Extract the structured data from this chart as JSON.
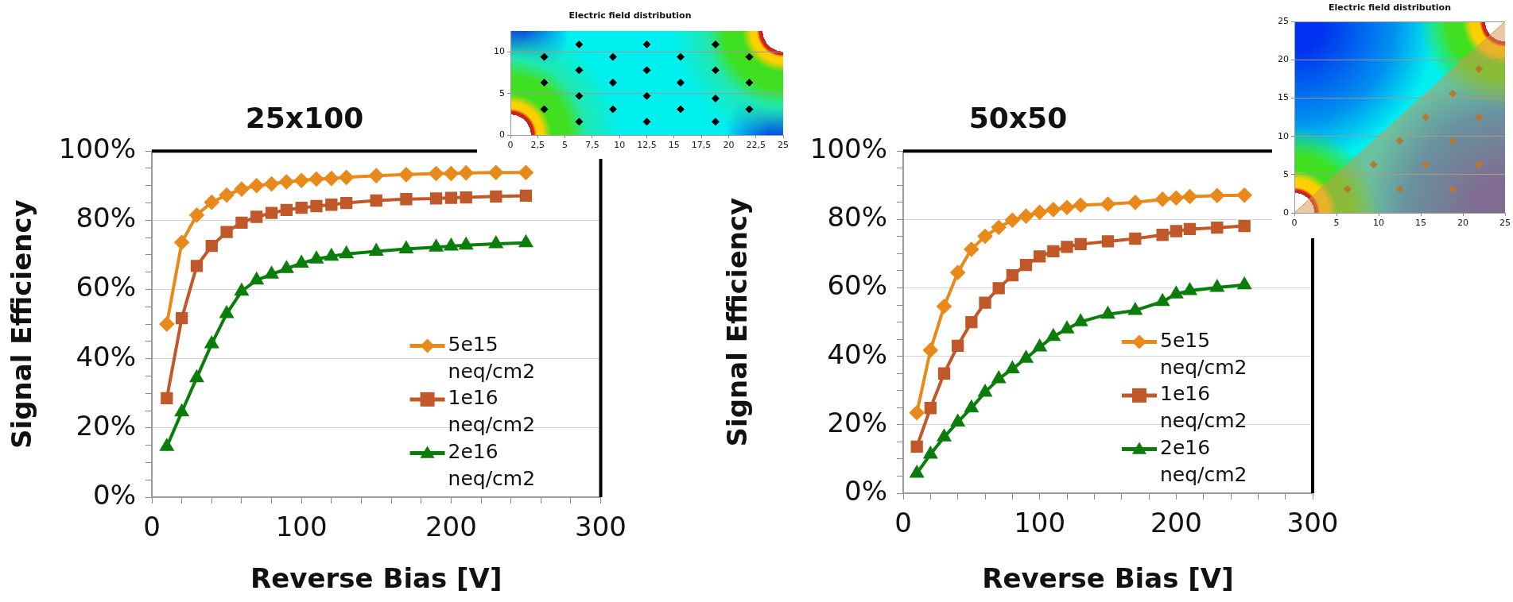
{
  "chart_data": [
    {
      "type": "line",
      "title": "25x100",
      "xlabel": "Reverse Bias [V]",
      "ylabel": "Signal Efficiency",
      "x": [
        10,
        20,
        30,
        40,
        50,
        60,
        70,
        80,
        90,
        100,
        110,
        120,
        130,
        150,
        170,
        190,
        200,
        210,
        230,
        250
      ],
      "series": [
        {
          "name": "5e15 neq/cm2",
          "color": "#e8891a",
          "marker": "diamond",
          "values": [
            50,
            73.6,
            81.5,
            85.2,
            87.3,
            89,
            90,
            90.5,
            91.1,
            91.5,
            91.9,
            92.1,
            92.4,
            92.9,
            93.2,
            93.5,
            93.5,
            93.7,
            93.8,
            93.8
          ]
        },
        {
          "name": "1e16 neq/cm2",
          "color": "#c0582a",
          "marker": "square",
          "values": [
            28.6,
            51.7,
            66.8,
            72.6,
            76.6,
            79.3,
            81,
            82.1,
            83,
            83.6,
            84.1,
            84.5,
            85,
            85.7,
            86.1,
            86.3,
            86.5,
            86.6,
            86.9,
            87.1
          ]
        },
        {
          "name": "2e16 neq/cm2",
          "color": "#0a7d0a",
          "marker": "triangle",
          "values": [
            14.6,
            24.6,
            34.5,
            44.3,
            53,
            59.5,
            62.7,
            64.4,
            66,
            67.6,
            68.8,
            69.6,
            70.3,
            71,
            71.7,
            72.2,
            72.5,
            72.8,
            73.2,
            73.5
          ]
        }
      ],
      "xlim": [
        0,
        300
      ],
      "xticks": [
        0,
        {
          "value": 20,
          "label": null
        },
        {
          "value": 40,
          "label": null
        },
        {
          "value": 60,
          "label": null
        },
        {
          "value": 80,
          "label": null
        },
        100,
        {
          "value": 120,
          "label": null
        },
        {
          "value": 140,
          "label": null
        },
        {
          "value": 160,
          "label": null
        },
        {
          "value": 180,
          "label": null
        },
        200,
        {
          "value": 220,
          "label": null
        },
        {
          "value": 240,
          "label": null
        },
        {
          "value": 260,
          "label": null
        },
        {
          "value": 280,
          "label": null
        },
        300
      ],
      "ylim": [
        0,
        100
      ],
      "yticks": [
        {
          "value": 0,
          "label": "0%"
        },
        {
          "value": 5,
          "label": null
        },
        {
          "value": 10,
          "label": null
        },
        {
          "value": 15,
          "label": null
        },
        {
          "value": 20,
          "label": "20%"
        },
        {
          "value": 25,
          "label": null
        },
        {
          "value": 30,
          "label": null
        },
        {
          "value": 35,
          "label": null
        },
        {
          "value": 40,
          "label": "40%"
        },
        {
          "value": 45,
          "label": null
        },
        {
          "value": 50,
          "label": null
        },
        {
          "value": 55,
          "label": null
        },
        {
          "value": 60,
          "label": "60%"
        },
        {
          "value": 65,
          "label": null
        },
        {
          "value": 70,
          "label": null
        },
        {
          "value": 75,
          "label": null
        },
        {
          "value": 80,
          "label": "80%"
        },
        {
          "value": 85,
          "label": null
        },
        {
          "value": 90,
          "label": null
        },
        {
          "value": 95,
          "label": null
        },
        {
          "value": 100,
          "label": "100%"
        }
      ],
      "grid": "y",
      "legend": "bottom right",
      "line_style": "solid"
    },
    {
      "type": "line",
      "title": "50x50",
      "xlabel": "Reverse Bias [V]",
      "ylabel": "Signal Efficiency",
      "x": [
        10,
        20,
        30,
        40,
        50,
        60,
        70,
        80,
        90,
        100,
        110,
        120,
        130,
        150,
        170,
        190,
        200,
        210,
        230,
        250
      ],
      "series": [
        {
          "name": "5e15 neq/cm2",
          "color": "#e8891a",
          "marker": "diamond",
          "values": [
            23.5,
            41.8,
            54.6,
            64.5,
            71.3,
            75.1,
            77.7,
            79.8,
            81,
            82.1,
            82.9,
            83.5,
            84.2,
            84.5,
            85,
            85.9,
            86.3,
            86.7,
            87,
            87.1
          ]
        },
        {
          "name": "1e16 neq/cm2",
          "color": "#c0582a",
          "marker": "square",
          "values": [
            13.6,
            24.9,
            35,
            43.1,
            50,
            55.7,
            59.9,
            63.7,
            66.7,
            69.2,
            70.7,
            72,
            72.8,
            73.6,
            74.4,
            75.5,
            76.6,
            77.2,
            77.6,
            78.1
          ]
        },
        {
          "name": "2e16 neq/cm2",
          "color": "#0a7d0a",
          "marker": "triangle",
          "values": [
            5.8,
            11.4,
            16.4,
            20.8,
            24.9,
            29.5,
            33.4,
            36.3,
            39.4,
            42.7,
            45.8,
            48,
            50.1,
            52.3,
            53.4,
            56,
            58.2,
            59.2,
            60.1,
            60.9
          ]
        }
      ],
      "xlim": [
        0,
        300
      ],
      "xticks": [
        0,
        {
          "value": 20,
          "label": null
        },
        {
          "value": 40,
          "label": null
        },
        {
          "value": 60,
          "label": null
        },
        {
          "value": 80,
          "label": null
        },
        100,
        {
          "value": 120,
          "label": null
        },
        {
          "value": 140,
          "label": null
        },
        {
          "value": 160,
          "label": null
        },
        {
          "value": 180,
          "label": null
        },
        200,
        {
          "value": 220,
          "label": null
        },
        {
          "value": 240,
          "label": null
        },
        {
          "value": 260,
          "label": null
        },
        {
          "value": 280,
          "label": null
        },
        300
      ],
      "ylim": [
        0,
        100
      ],
      "yticks": [
        {
          "value": 0,
          "label": "0%"
        },
        {
          "value": 5,
          "label": null
        },
        {
          "value": 10,
          "label": null
        },
        {
          "value": 15,
          "label": null
        },
        {
          "value": 20,
          "label": "20%"
        },
        {
          "value": 25,
          "label": null
        },
        {
          "value": 30,
          "label": null
        },
        {
          "value": 35,
          "label": null
        },
        {
          "value": 40,
          "label": "40%"
        },
        {
          "value": 45,
          "label": null
        },
        {
          "value": 50,
          "label": null
        },
        {
          "value": 55,
          "label": null
        },
        {
          "value": 60,
          "label": "60%"
        },
        {
          "value": 65,
          "label": null
        },
        {
          "value": 70,
          "label": null
        },
        {
          "value": 75,
          "label": null
        },
        {
          "value": 80,
          "label": "80%"
        },
        {
          "value": 85,
          "label": null
        },
        {
          "value": 90,
          "label": null
        },
        {
          "value": 95,
          "label": null
        },
        {
          "value": 100,
          "label": "100%"
        }
      ],
      "grid": "y",
      "legend": "bottom right",
      "line_style": "solid"
    },
    {
      "type": "scatter",
      "title": "Electric field distribution",
      "marker": "diamond",
      "series": [
        {
          "color": "#000000",
          "x": [
            3.1,
            3.1,
            3.1,
            6.3,
            6.3,
            6.3,
            6.3,
            9.4,
            9.4,
            9.4,
            12.5,
            12.5,
            12.5,
            12.5,
            15.6,
            15.6,
            15.6,
            18.8,
            18.8,
            18.8,
            18.8,
            21.9,
            21.9,
            21.9
          ],
          "values": [
            3.1,
            6.3,
            9.4,
            1.6,
            4.7,
            7.8,
            10.9,
            3.1,
            6.3,
            9.4,
            1.6,
            4.7,
            7.8,
            10.9,
            3.1,
            6.3,
            9.4,
            1.6,
            4.4,
            7.8,
            10.9,
            3.1,
            6.3,
            9.4
          ]
        }
      ],
      "xlim": [
        0,
        25
      ],
      "xticks": [
        0,
        {
          "value": 2.5,
          "label": "2,5"
        },
        5,
        {
          "value": 7.5,
          "label": "7,5"
        },
        10,
        {
          "value": 12.5,
          "label": "12,5"
        },
        15,
        {
          "value": 17.5,
          "label": "17,5"
        },
        20,
        {
          "value": 22.5,
          "label": "22,5"
        },
        25
      ],
      "ylim": [
        0,
        12.5
      ],
      "yticks": [
        0,
        5,
        10
      ],
      "grid": "y"
    },
    {
      "type": "scatter",
      "title": "Electric field distribution",
      "series": [
        {
          "type": "area",
          "color": "#d29650",
          "marker": "none",
          "x": [
            0,
            25
          ],
          "values": [
            0,
            25
          ]
        },
        {
          "color": "#9a5a12",
          "marker": "diamond",
          "x": [
            6.3,
            9.4,
            12.5,
            12.5,
            15.6,
            15.6,
            18.8,
            18.8,
            18.8,
            21.9,
            21.9,
            21.9
          ],
          "values": [
            3.1,
            6.3,
            3.1,
            9.4,
            6.3,
            12.5,
            3.1,
            9.4,
            15.6,
            6.3,
            12.5,
            18.8
          ]
        }
      ],
      "xlim": [
        0,
        25
      ],
      "xticks": [
        0,
        5,
        10,
        15,
        20,
        25
      ],
      "ylim": [
        0,
        25
      ],
      "yticks": [
        0,
        5,
        10,
        15,
        20,
        25
      ],
      "grid": "y"
    }
  ]
}
